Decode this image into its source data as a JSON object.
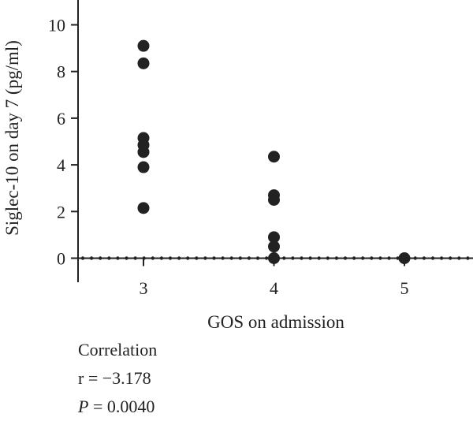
{
  "chart_data": {
    "type": "scatter",
    "xlabel": "GOS on admission",
    "ylabel": "Siglec-10 on day 7 (pg/ml)",
    "xlim": [
      2.5,
      5.5
    ],
    "ylim": [
      -1,
      11
    ],
    "x_ticks": [
      3,
      4,
      5
    ],
    "y_ticks": [
      0,
      2,
      4,
      6,
      8,
      10
    ],
    "grid": false,
    "reference_line": {
      "y": 0,
      "style": "dotted"
    },
    "points": [
      {
        "x": 3,
        "y": 9.1
      },
      {
        "x": 3,
        "y": 8.35
      },
      {
        "x": 3,
        "y": 5.15
      },
      {
        "x": 3,
        "y": 4.85
      },
      {
        "x": 3,
        "y": 4.55
      },
      {
        "x": 3,
        "y": 3.9
      },
      {
        "x": 3,
        "y": 2.15
      },
      {
        "x": 4,
        "y": 4.35
      },
      {
        "x": 4,
        "y": 2.7
      },
      {
        "x": 4,
        "y": 2.5
      },
      {
        "x": 4,
        "y": 0.9
      },
      {
        "x": 4,
        "y": 0.5
      },
      {
        "x": 4,
        "y": 0.0
      },
      {
        "x": 5,
        "y": 0.0
      }
    ]
  },
  "stats": {
    "heading": "Correlation",
    "r_text": "r = −3.178",
    "p_symbol": "P",
    "p_value": " = 0.0040"
  }
}
